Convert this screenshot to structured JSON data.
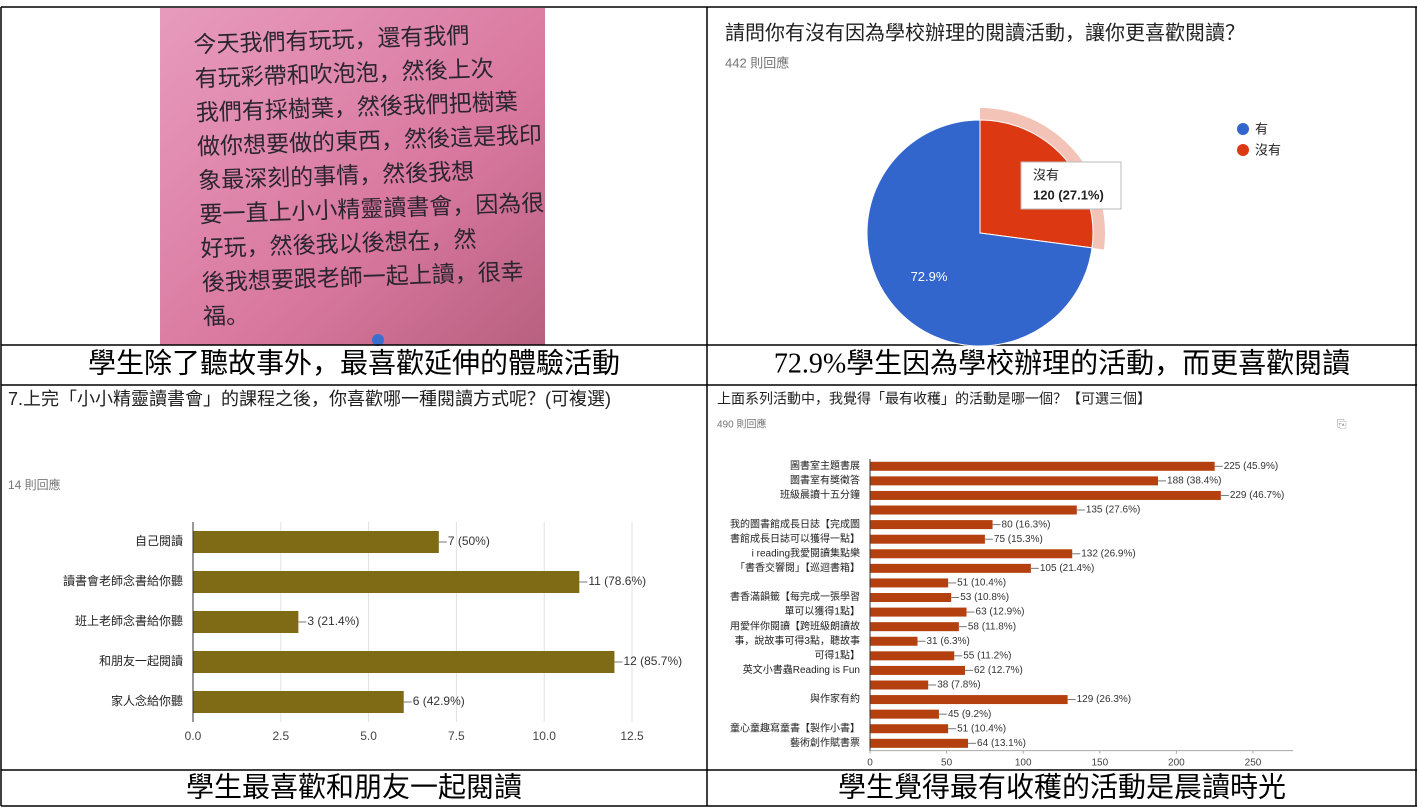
{
  "photo": {
    "lines": [
      "今天我們有玩玩，還有我們",
      "有玩彩帶和吹泡泡，然後上次",
      "我們有採樹葉，然後我們把樹葉",
      "做你想要做的東西，然後這是我印",
      "象最深刻的事情，然後我想",
      "要一直上小小精靈讀書會，因為很",
      "好玩，然後我以後想在，然",
      "後我想要跟老師一起上讀，很幸",
      "福。"
    ]
  },
  "captions": [
    "學生除了聽故事外，最喜歡延伸的體驗活動",
    "72.9%學生因為學校辦理的活動，而更喜歡閱讀",
    "學生最喜歡和朋友一起閱讀",
    "學生覺得最有收穫的活動是晨讀時光"
  ],
  "chart_data": [
    {
      "type": "pie",
      "title": "請問你有沒有因為學校辦理的閱讀活動，讓你更喜歡閱讀？",
      "subtitle": "442 則回應",
      "categories": [
        "有",
        "沒有"
      ],
      "values": [
        72.9,
        27.1
      ],
      "value_labels": [
        "72.9%",
        null
      ],
      "colors": [
        "#3366cc",
        "#dc3912"
      ],
      "tooltip": "120 (27.1%)",
      "legend": "right"
    },
    {
      "type": "bar",
      "title": "7.上完「小小精靈讀書會」的課程之後，你喜歡哪一種閱讀方式呢？(可複選)",
      "subtitle": "14 則回應",
      "categories": [
        "自己閱讀",
        "讀書會老師念書給你聽",
        "班上老師念書給你聽",
        "和朋友一起閱讀",
        "家人念給你聽"
      ],
      "values": [
        7,
        11,
        3,
        12,
        6
      ],
      "value_labels": [
        "7 (50%)",
        "11 (78.6%)",
        "3 (21.4%)",
        "12 (85.7%)",
        "6 (42.9%)"
      ],
      "color": "#7f6a16",
      "xlim": [
        0,
        12.5
      ],
      "xticks": [
        {
          "value": 0,
          "label": "0.0"
        },
        2.5,
        {
          "value": 5,
          "label": "5.0"
        },
        7.5,
        {
          "value": 10,
          "label": "10.0"
        },
        12.5
      ],
      "grid": true
    },
    {
      "type": "bar",
      "title": "上面系列活動中，我覺得「最有收穫」的活動是哪一個？【可選三個】",
      "subtitle": "490 則回應",
      "categories": [
        "圖書室主題書展",
        "圖書室有獎徵答",
        "班級晨讀十五分鐘",
        null,
        "我的圖書館成長日誌【完成圖",
        "書館成長日誌可以獲得一點】",
        "i reading我愛閱讀集點樂",
        "「書香交響閱」【巡迴書箱】",
        null,
        "書香滿韻籤【每完成一張學習",
        "單可以獲得1點】",
        "用愛伴你閱讀【跨班級朗讀故",
        "事，說故事可得3點，聽故事",
        "可得1點】",
        "英文小書蟲Reading is Fun",
        null,
        "與作家有約",
        null,
        "童心童趣寫童書【製作小書】",
        "藝術創作賦書票"
      ],
      "values": [
        225,
        188,
        229,
        135,
        80,
        75,
        132,
        105,
        51,
        53,
        63,
        58,
        31,
        55,
        62,
        38,
        129,
        45,
        51,
        64
      ],
      "value_labels": [
        "225 (45.9%)",
        "188 (38.4%)",
        "229 (46.7%)",
        "135 (27.6%)",
        "80 (16.3%)",
        "75 (15.3%)",
        "132 (26.9%)",
        "105 (21.4%)",
        "51 (10.4%)",
        "53 (10.8%)",
        "63 (12.9%)",
        "58 (11.8%)",
        "31 (6.3%)",
        "55 (11.2%)",
        "62 (12.7%)",
        "38 (7.8%)",
        "129 (26.3%)",
        "45 (9.2%)",
        "51 (10.4%)",
        "64 (13.1%)"
      ],
      "color": "#b5400f",
      "xlim": [
        0,
        250
      ],
      "xticks": [
        0,
        50,
        100,
        150,
        200,
        250
      ],
      "grid": false
    }
  ]
}
